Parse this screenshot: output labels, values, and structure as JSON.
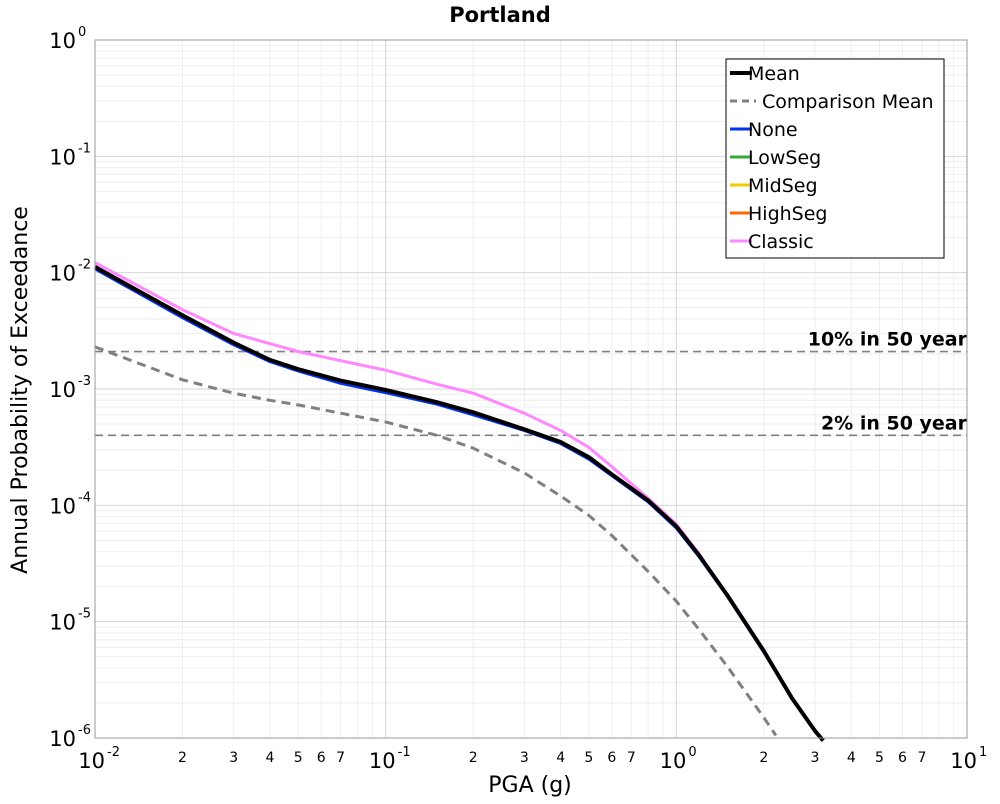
{
  "chart_data": {
    "type": "line",
    "title": "Portland",
    "xlabel": "PGA (g)",
    "ylabel": "Annual Probability of Exceedance",
    "x_scale": "log",
    "y_scale": "log",
    "xlim": [
      0.01,
      10
    ],
    "ylim": [
      1e-06,
      1
    ],
    "grid": true,
    "legend_position": "top-right",
    "x_major_ticks": [
      {
        "value": 0.01,
        "base": "10",
        "exp": "-2"
      },
      {
        "value": 0.1,
        "base": "10",
        "exp": "-1"
      },
      {
        "value": 1,
        "base": "10",
        "exp": "0"
      },
      {
        "value": 10,
        "base": "10",
        "exp": "1"
      }
    ],
    "x_minor_labels": [
      "2",
      "3",
      "4",
      "5",
      "6",
      "7"
    ],
    "y_major_ticks": [
      {
        "value": 1,
        "base": "10",
        "exp": "0"
      },
      {
        "value": 0.1,
        "base": "10",
        "exp": "-1"
      },
      {
        "value": 0.01,
        "base": "10",
        "exp": "-2"
      },
      {
        "value": 0.001,
        "base": "10",
        "exp": "-3"
      },
      {
        "value": 0.0001,
        "base": "10",
        "exp": "-4"
      },
      {
        "value": 1e-05,
        "base": "10",
        "exp": "-5"
      },
      {
        "value": 1e-06,
        "base": "10",
        "exp": "-6"
      }
    ],
    "reference_lines": [
      {
        "label": "10% in 50 year",
        "y": 0.0021,
        "color": "#808080"
      },
      {
        "label": "2% in 50 year",
        "y": 0.0004,
        "color": "#808080"
      }
    ],
    "series": [
      {
        "name": "Classic",
        "color": "#ff88ff",
        "dash": "none",
        "x": [
          0.01,
          0.02,
          0.03,
          0.04,
          0.05,
          0.07,
          0.1,
          0.15,
          0.2,
          0.3,
          0.4,
          0.5,
          0.6,
          0.8,
          1.0,
          1.2,
          1.5,
          2.0,
          2.5,
          3.0,
          3.2
        ],
        "y": [
          0.0122,
          0.0048,
          0.003,
          0.00245,
          0.0021,
          0.00175,
          0.00145,
          0.0011,
          0.00092,
          0.00062,
          0.00044,
          0.000315,
          0.000215,
          0.000115,
          6.9e-05,
          3.8e-05,
          1.65e-05,
          5.5e-06,
          2.2e-06,
          1.15e-06,
          9.5e-07
        ]
      },
      {
        "name": "None",
        "color": "#0033ee",
        "dash": "none",
        "x": [
          0.01,
          0.02,
          0.03,
          0.04,
          0.05,
          0.07,
          0.1,
          0.15,
          0.2,
          0.3,
          0.4,
          0.5,
          0.6,
          0.8,
          1.0,
          1.2,
          1.5,
          2.0,
          2.5,
          3.0,
          3.2
        ],
        "y": [
          0.0108,
          0.0041,
          0.0024,
          0.00172,
          0.00143,
          0.00112,
          0.00093,
          0.00074,
          0.0006,
          0.00044,
          0.00034,
          0.00025,
          0.00018,
          0.000107,
          6.4e-05,
          3.6e-05,
          1.65e-05,
          5.5e-06,
          2.2e-06,
          1.15e-06,
          9.5e-07
        ]
      },
      {
        "name": "Mean",
        "color": "#000000",
        "dash": "none",
        "x": [
          0.01,
          0.02,
          0.03,
          0.04,
          0.05,
          0.07,
          0.1,
          0.15,
          0.2,
          0.3,
          0.4,
          0.5,
          0.6,
          0.8,
          1.0,
          1.2,
          1.5,
          2.0,
          2.5,
          3.0,
          3.2
        ],
        "y": [
          0.0112,
          0.0043,
          0.0025,
          0.00178,
          0.00148,
          0.00118,
          0.00098,
          0.00077,
          0.00063,
          0.00045,
          0.00035,
          0.00026,
          0.000185,
          0.00011,
          6.6e-05,
          3.7e-05,
          1.68e-05,
          5.6e-06,
          2.2e-06,
          1.15e-06,
          9.5e-07
        ]
      },
      {
        "name": "Comparison Mean",
        "color": "#808080",
        "dash": "dashed",
        "x": [
          0.01,
          0.02,
          0.03,
          0.04,
          0.05,
          0.07,
          0.1,
          0.15,
          0.2,
          0.3,
          0.4,
          0.5,
          0.6,
          0.8,
          1.0,
          1.2,
          1.5,
          2.0,
          2.2
        ],
        "y": [
          0.0023,
          0.0012,
          0.00092,
          0.0008,
          0.00073,
          0.00062,
          0.00052,
          0.0004,
          0.00031,
          0.00019,
          0.00012,
          8.2e-05,
          5.5e-05,
          2.7e-05,
          1.5e-05,
          8.5e-06,
          4.1e-06,
          1.5e-06,
          1.05e-06
        ]
      }
    ],
    "legend": [
      {
        "name": "Mean",
        "color": "#000000",
        "dash": "none",
        "width": 4
      },
      {
        "name": "Comparison Mean",
        "color": "#808080",
        "dash": "dashed",
        "width": 3
      },
      {
        "name": "None",
        "color": "#0033ee",
        "dash": "none",
        "width": 3
      },
      {
        "name": "LowSeg",
        "color": "#33aa33",
        "dash": "none",
        "width": 3
      },
      {
        "name": "MidSeg",
        "color": "#eecc00",
        "dash": "none",
        "width": 3
      },
      {
        "name": "HighSeg",
        "color": "#ff6600",
        "dash": "none",
        "width": 3
      },
      {
        "name": "Classic",
        "color": "#ff88ff",
        "dash": "none",
        "width": 3
      }
    ]
  }
}
